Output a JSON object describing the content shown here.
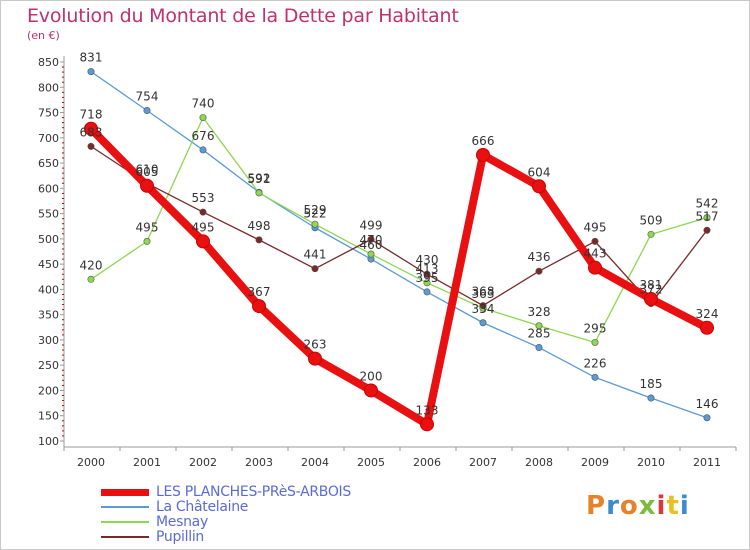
{
  "title": "Evolution du Montant de la Dette par Habitant",
  "unit": "(en €)",
  "logo": "Proxiti",
  "logo_colors": [
    "#e8822a",
    "#3a8bd0",
    "#e8822a",
    "#7cba3c",
    "#d63a3a",
    "#e8c020",
    "#3a8bd0"
  ],
  "chart_data": {
    "type": "line",
    "x": [
      "2000",
      "2001",
      "2002",
      "2003",
      "2004",
      "2005",
      "2006",
      "2007",
      "2008",
      "2009",
      "2010",
      "2011"
    ],
    "yticks": [
      100,
      150,
      200,
      250,
      300,
      350,
      400,
      450,
      500,
      550,
      600,
      650,
      700,
      750,
      800,
      850
    ],
    "ylim": [
      100,
      850
    ],
    "grid": false,
    "legend_position": "bottom-left",
    "series": [
      {
        "name": "LES PLANCHES-PRèS-ARBOIS",
        "color": "#e81010",
        "values": [
          718,
          605,
          495,
          367,
          263,
          200,
          133,
          666,
          604,
          443,
          381,
          324
        ]
      },
      {
        "name": "La Châtelaine",
        "color": "#5b9bd5",
        "values": [
          831,
          754,
          676,
          592,
          522,
          460,
          395,
          334,
          285,
          226,
          185,
          146
        ]
      },
      {
        "name": "Mesnay",
        "color": "#8cd850",
        "values": [
          420,
          495,
          740,
          591,
          529,
          470,
          413,
          363,
          328,
          295,
          509,
          542
        ]
      },
      {
        "name": "Pupillin",
        "color": "#7a2828",
        "values": [
          683,
          610,
          553,
          498,
          441,
          499,
          430,
          368,
          436,
          495,
          372,
          517
        ]
      }
    ]
  }
}
